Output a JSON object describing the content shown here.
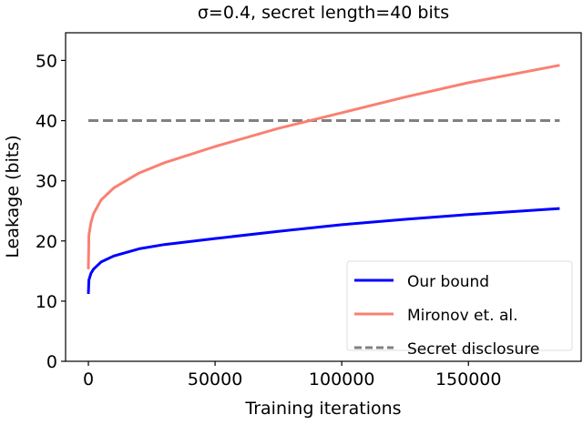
{
  "chart_data": {
    "type": "line",
    "title": "σ=0.4, secret length=40 bits",
    "xlabel": "Training iterations",
    "ylabel": "Leakage (bits)",
    "xlim": [
      -9000,
      194500
    ],
    "ylim": [
      0,
      54.6
    ],
    "xticks": [
      0,
      50000,
      100000,
      150000
    ],
    "yticks": [
      0,
      10,
      20,
      30,
      40,
      50
    ],
    "grid": false,
    "legend_placement": "lower-right",
    "x": [
      0,
      200,
      1000,
      2000,
      5000,
      10000,
      20000,
      30000,
      50000,
      75000,
      100000,
      125000,
      150000,
      186000
    ],
    "series": [
      {
        "name": "Our bound",
        "color": "#0000ff",
        "style": "solid",
        "values": [
          11.2,
          13.5,
          14.6,
          15.3,
          16.5,
          17.5,
          18.7,
          19.4,
          20.4,
          21.6,
          22.7,
          23.6,
          24.4,
          25.4
        ]
      },
      {
        "name": "Mironov et. al.",
        "color": "#fa8072",
        "style": "solid",
        "values": [
          15.3,
          21.0,
          23.0,
          24.5,
          26.8,
          28.8,
          31.3,
          33.0,
          35.7,
          38.7,
          41.3,
          43.9,
          46.3,
          49.2
        ]
      },
      {
        "name": "Secret disclosure",
        "color": "#808080",
        "style": "dashed",
        "values": [
          40,
          40,
          40,
          40,
          40,
          40,
          40,
          40,
          40,
          40,
          40,
          40,
          40,
          40
        ]
      }
    ]
  }
}
